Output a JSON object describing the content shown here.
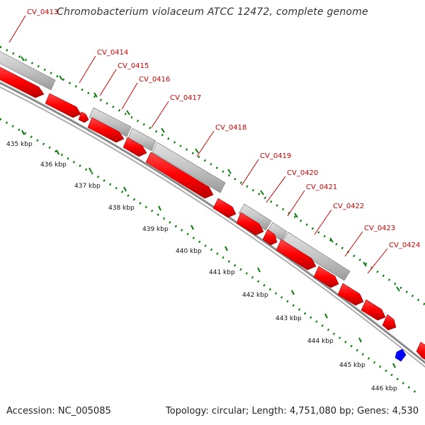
{
  "title": "Chromobacterium violaceum ATCC 12472, complete genome",
  "footer": {
    "accession": "Accession: NC_005085",
    "summary": "Topology: circular; Length: 4,751,080 bp; Genes: 4,530"
  },
  "colors": {
    "gene_forward": "#ff0000",
    "gene_reverse": "#c0c0c0",
    "feature_other": "#0000ff",
    "backbone": "#808080",
    "tick": "#008000",
    "label_text": "#cc0000"
  },
  "gene_labels": [
    "CV_0413",
    "CV_0414",
    "CV_0415",
    "CV_0416",
    "CV_0417",
    "CV_0418",
    "CV_0419",
    "CV_0420",
    "CV_0421",
    "CV_0422",
    "CV_0423",
    "CV_0424"
  ],
  "kbp_labels": [
    "435 kbp",
    "436 kbp",
    "437 kbp",
    "438 kbp",
    "439 kbp",
    "440 kbp",
    "441 kbp",
    "442 kbp",
    "443 kbp",
    "444 kbp",
    "445 kbp",
    "446 kbp"
  ]
}
